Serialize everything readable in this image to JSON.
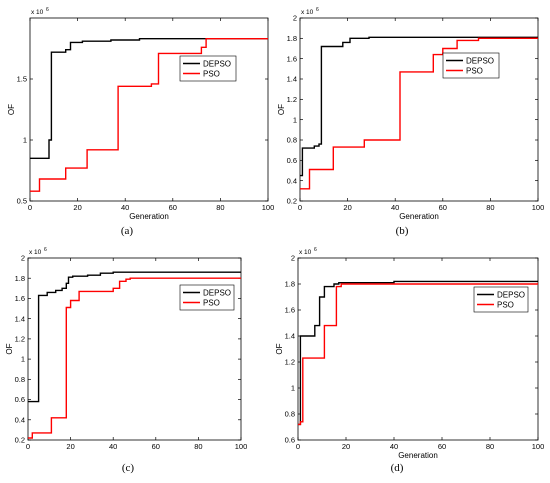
{
  "chart_data": [
    {
      "type": "line",
      "caption": "(a)",
      "xlabel": "Generation",
      "ylabel": "OF",
      "exponent_label": "x 10",
      "exponent_power": "6",
      "xlim": [
        0,
        100
      ],
      "ylim": [
        0.5,
        2.0
      ],
      "xticks": [
        0,
        20,
        40,
        60,
        80,
        100
      ],
      "yticks": [
        0.5,
        1,
        1.5
      ],
      "ytick_labels": [
        "0.5",
        "1",
        "1.5"
      ],
      "legend_position": "right",
      "series": [
        {
          "name": "DEPSO",
          "color": "#000000",
          "step": true,
          "x": [
            0,
            7,
            8,
            9,
            14,
            15,
            17,
            21,
            22,
            33,
            34,
            46,
            100
          ],
          "y": [
            0.85,
            0.85,
            1.0,
            1.72,
            1.72,
            1.74,
            1.8,
            1.8,
            1.81,
            1.81,
            1.82,
            1.83,
            1.83
          ]
        },
        {
          "name": "PSO",
          "color": "#ff0000",
          "step": true,
          "x": [
            0,
            4,
            11,
            15,
            24,
            35,
            37,
            51,
            54,
            72,
            74,
            100
          ],
          "y": [
            0.58,
            0.68,
            0.68,
            0.77,
            0.92,
            0.92,
            1.44,
            1.46,
            1.71,
            1.76,
            1.83,
            1.83
          ]
        }
      ]
    },
    {
      "type": "line",
      "caption": "(b)",
      "xlabel": "Generation",
      "ylabel": "OF",
      "exponent_label": "x 10",
      "exponent_power": "6",
      "xlim": [
        0,
        100
      ],
      "ylim": [
        0.2,
        2.0
      ],
      "xticks": [
        0,
        20,
        40,
        60,
        80,
        100
      ],
      "yticks": [
        0.2,
        0.4,
        0.6,
        0.8,
        1,
        1.2,
        1.4,
        1.6,
        1.8,
        2
      ],
      "ytick_labels": [
        "0.2",
        "0.4",
        "0.6",
        "0.8",
        "1",
        "1.2",
        "1.4",
        "1.6",
        "1.8",
        "2"
      ],
      "legend_position": "right",
      "series": [
        {
          "name": "DEPSO",
          "color": "#000000",
          "step": true,
          "x": [
            0,
            1,
            6,
            8,
            9,
            10,
            18,
            21,
            24,
            29,
            40,
            100
          ],
          "y": [
            0.45,
            0.72,
            0.74,
            0.76,
            1.72,
            1.72,
            1.76,
            1.8,
            1.8,
            1.81,
            1.81,
            1.81
          ]
        },
        {
          "name": "PSO",
          "color": "#ff0000",
          "step": true,
          "x": [
            0,
            4,
            7,
            14,
            27,
            39,
            42,
            56,
            60,
            66,
            75,
            100
          ],
          "y": [
            0.32,
            0.51,
            0.51,
            0.73,
            0.8,
            0.8,
            1.47,
            1.64,
            1.7,
            1.78,
            1.8,
            1.8
          ]
        }
      ]
    },
    {
      "type": "line",
      "caption": "(c)",
      "xlabel": "",
      "ylabel": "OF",
      "exponent_label": "x 10",
      "exponent_power": "6",
      "xlim": [
        0,
        100
      ],
      "ylim": [
        0.2,
        2.0
      ],
      "xticks": [
        0,
        20,
        40,
        60,
        80,
        100
      ],
      "yticks": [
        0.2,
        0.4,
        0.6,
        0.8,
        1,
        1.2,
        1.4,
        1.6,
        1.8,
        2
      ],
      "ytick_labels": [
        "0.2",
        "0.4",
        "0.6",
        "0.8",
        "1",
        "1.2",
        "1.4",
        "1.6",
        "1.8",
        "2"
      ],
      "legend_position": "top-right",
      "series": [
        {
          "name": "DEPSO",
          "color": "#000000",
          "step": true,
          "x": [
            0,
            4,
            5,
            9,
            13,
            16,
            18,
            19,
            21,
            28,
            34,
            40,
            100
          ],
          "y": [
            0.58,
            0.58,
            1.63,
            1.66,
            1.68,
            1.7,
            1.75,
            1.81,
            1.82,
            1.83,
            1.85,
            1.86,
            1.86
          ]
        },
        {
          "name": "PSO",
          "color": "#ff0000",
          "step": true,
          "x": [
            0,
            2,
            7,
            11,
            17,
            18,
            20,
            24,
            40,
            43,
            46,
            48,
            100
          ],
          "y": [
            0.22,
            0.27,
            0.27,
            0.42,
            0.42,
            1.51,
            1.58,
            1.67,
            1.7,
            1.77,
            1.79,
            1.8,
            1.8
          ]
        }
      ]
    },
    {
      "type": "line",
      "caption": "(d)",
      "xlabel": "Generation",
      "ylabel": "OF",
      "exponent_label": "x 10",
      "exponent_power": "6",
      "xlim": [
        0,
        100
      ],
      "ylim": [
        0.6,
        2.0
      ],
      "xticks": [
        0,
        20,
        40,
        60,
        80,
        100
      ],
      "yticks": [
        0.6,
        0.8,
        1,
        1.2,
        1.4,
        1.6,
        1.8,
        2
      ],
      "ytick_labels": [
        "0.6",
        "0.8",
        "1",
        "1.2",
        "1.4",
        "1.6",
        "1.8",
        "2"
      ],
      "legend_position": "top-right",
      "series": [
        {
          "name": "DEPSO",
          "color": "#000000",
          "step": true,
          "x": [
            0,
            1,
            5,
            7,
            9,
            11,
            13,
            15,
            17,
            40,
            100
          ],
          "y": [
            0.72,
            1.4,
            1.4,
            1.48,
            1.7,
            1.78,
            1.78,
            1.8,
            1.81,
            1.82,
            1.82
          ]
        },
        {
          "name": "PSO",
          "color": "#ff0000",
          "step": true,
          "x": [
            0,
            1,
            2,
            8,
            11,
            14,
            16,
            18,
            100
          ],
          "y": [
            0.72,
            0.74,
            1.23,
            1.23,
            1.48,
            1.48,
            1.78,
            1.8,
            1.81
          ]
        }
      ]
    }
  ]
}
